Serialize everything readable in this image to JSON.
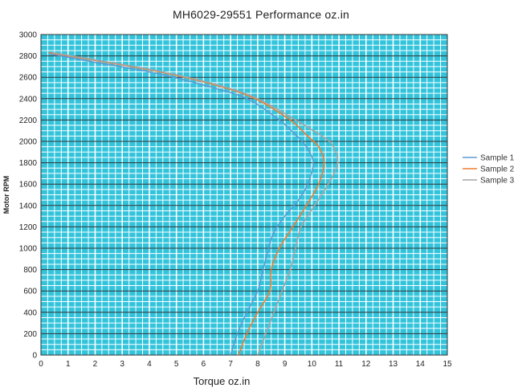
{
  "chart_data": {
    "type": "line",
    "title": "MH6029-29551    Performance oz.in",
    "xlabel": "Torque  oz.in",
    "ylabel": "Motor RPM",
    "xlim": [
      0,
      15
    ],
    "ylim": [
      0,
      3000
    ],
    "x_ticks": [
      "0",
      "1",
      "2",
      "3",
      "4",
      "5",
      "6",
      "7",
      "8",
      "9",
      "10",
      "11",
      "12",
      "13",
      "14",
      "15"
    ],
    "y_ticks": [
      "0",
      "200",
      "400",
      "600",
      "800",
      "1000",
      "1200",
      "1400",
      "1600",
      "1800",
      "2000",
      "2200",
      "2400",
      "2600",
      "2800",
      "3000"
    ],
    "grid": true,
    "plot_background": "#33c4dc",
    "grid_colors": {
      "major_horizontal": "#333333",
      "minor": "#ffffff",
      "vertical": "#ffffff"
    },
    "legend_position": "right",
    "series": [
      {
        "name": "Sample 1",
        "color": "#5b9bd5",
        "points": [
          [
            7.0,
            0
          ],
          [
            7.25,
            200
          ],
          [
            7.6,
            400
          ],
          [
            8.0,
            600
          ],
          [
            8.2,
            800
          ],
          [
            8.4,
            1000
          ],
          [
            8.6,
            1150
          ],
          [
            9.0,
            1300
          ],
          [
            9.5,
            1450
          ],
          [
            9.85,
            1600
          ],
          [
            10.05,
            1800
          ],
          [
            9.8,
            1950
          ],
          [
            9.4,
            2060
          ],
          [
            8.8,
            2200
          ],
          [
            7.6,
            2400
          ],
          [
            6.1,
            2520
          ],
          [
            4.2,
            2640
          ],
          [
            2.0,
            2740
          ],
          [
            0.3,
            2820
          ]
        ]
      },
      {
        "name": "Sample 2",
        "color": "#ed7d31",
        "points": [
          [
            7.3,
            0
          ],
          [
            7.6,
            200
          ],
          [
            8.0,
            400
          ],
          [
            8.45,
            600
          ],
          [
            8.5,
            800
          ],
          [
            8.8,
            1000
          ],
          [
            9.3,
            1200
          ],
          [
            9.8,
            1400
          ],
          [
            10.25,
            1600
          ],
          [
            10.45,
            1800
          ],
          [
            10.25,
            1950
          ],
          [
            9.8,
            2060
          ],
          [
            9.2,
            2200
          ],
          [
            7.9,
            2400
          ],
          [
            6.4,
            2530
          ],
          [
            4.4,
            2650
          ],
          [
            2.2,
            2750
          ],
          [
            0.3,
            2830
          ]
        ]
      },
      {
        "name": "Sample 3",
        "color": "#a5a5a5",
        "points": [
          [
            8.0,
            0
          ],
          [
            8.3,
            200
          ],
          [
            8.6,
            400
          ],
          [
            8.9,
            600
          ],
          [
            9.2,
            800
          ],
          [
            9.4,
            1000
          ],
          [
            9.6,
            1200
          ],
          [
            10.1,
            1400
          ],
          [
            10.6,
            1600
          ],
          [
            10.95,
            1800
          ],
          [
            10.75,
            1970
          ],
          [
            10.3,
            2060
          ],
          [
            9.4,
            2200
          ],
          [
            8.0,
            2400
          ],
          [
            6.5,
            2530
          ],
          [
            4.5,
            2650
          ],
          [
            2.3,
            2750
          ],
          [
            0.4,
            2830
          ]
        ]
      }
    ]
  }
}
